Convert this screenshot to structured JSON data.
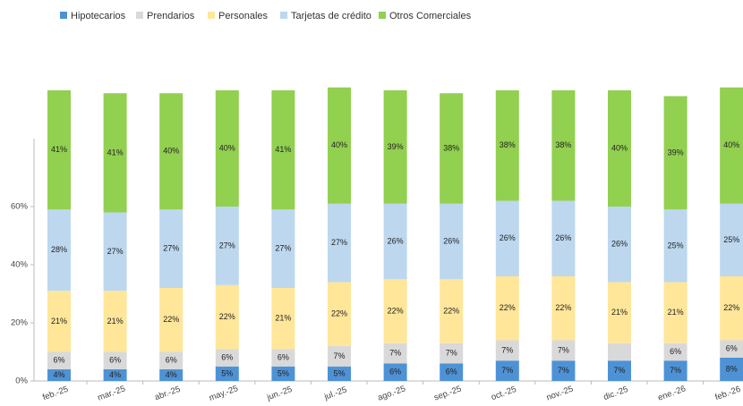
{
  "chart_data": {
    "type": "stacked_bar",
    "categories": [
      "feb.-25",
      "mar.-25",
      "abr.-25",
      "may.-25",
      "jun.-25",
      "jul.-25",
      "ago.-25",
      "sep.-25",
      "oct.-25",
      "nov.-25",
      "dic.-25",
      "ene.-26",
      "feb.-26"
    ],
    "series": [
      {
        "name": "Hipotecarios",
        "color": "#4e92d6",
        "values": [
          4,
          4,
          4,
          5,
          5,
          5,
          6,
          6,
          7,
          7,
          7,
          7,
          8
        ],
        "value_labels": [
          "4%",
          "4%",
          "4%",
          "5%",
          "5%",
          "5%",
          "6%",
          "6%",
          "7%",
          "7%",
          "7%",
          "7%",
          "8%"
        ]
      },
      {
        "name": "Prendarios",
        "color": "#d9d9d9",
        "values": [
          6,
          6,
          6,
          6,
          6,
          7,
          7,
          7,
          7,
          7,
          6,
          6,
          6
        ],
        "value_labels": [
          "6%",
          "6%",
          "6%",
          "6%",
          "6%",
          "7%",
          "7%",
          "7%",
          "7%",
          "7%",
          null,
          "6%",
          "6%"
        ]
      },
      {
        "name": "Personales",
        "color": "#ffe699",
        "values": [
          21,
          21,
          22,
          22,
          21,
          22,
          22,
          22,
          22,
          22,
          21,
          21,
          22
        ],
        "value_labels": [
          "21%",
          "21%",
          "22%",
          "22%",
          "21%",
          "22%",
          "22%",
          "22%",
          "22%",
          "22%",
          "21%",
          "21%",
          "22%"
        ]
      },
      {
        "name": "Tarjetas de crédito",
        "color": "#bdd7ee",
        "values": [
          28,
          27,
          27,
          27,
          27,
          27,
          26,
          26,
          26,
          26,
          26,
          25,
          25
        ],
        "value_labels": [
          "28%",
          "27%",
          "27%",
          "27%",
          "27%",
          "27%",
          "26%",
          "26%",
          "26%",
          "26%",
          "26%",
          "25%",
          "25%"
        ]
      },
      {
        "name": "Otros Comerciales",
        "color": "#92d050",
        "values": [
          41,
          41,
          40,
          40,
          41,
          40,
          39,
          38,
          38,
          38,
          40,
          39,
          40
        ],
        "value_labels": [
          "41%",
          "41%",
          "40%",
          "40%",
          "41%",
          "40%",
          "39%",
          "38%",
          "38%",
          "38%",
          "40%",
          "39%",
          "40%"
        ]
      }
    ],
    "ylim": [
      0,
      100
    ],
    "yticks": [
      {
        "value": 0,
        "label": "0%"
      },
      {
        "value": 20,
        "label": "20%"
      },
      {
        "value": 40,
        "label": "40%"
      },
      {
        "value": 60,
        "label": "60%"
      }
    ],
    "legend": "top"
  }
}
